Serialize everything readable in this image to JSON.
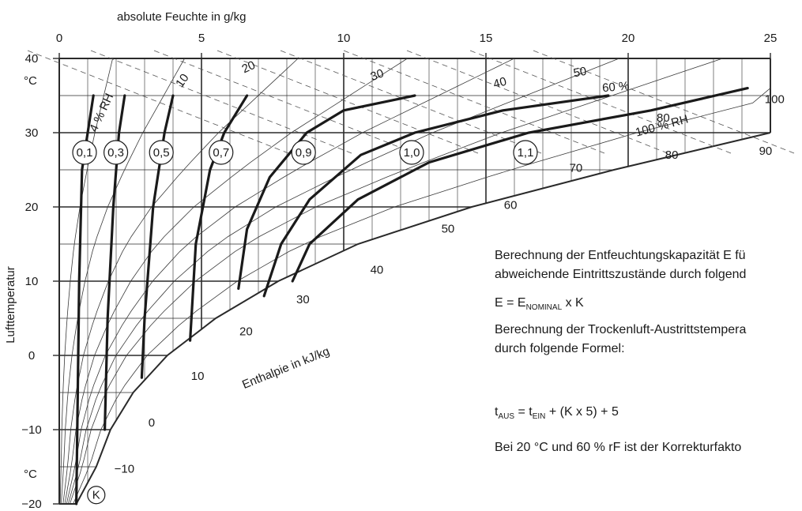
{
  "chart_data": {
    "type": "line",
    "title": "",
    "xlabel": "absolute Feuchte in g/kg",
    "ylabel": "Lufttemperatur",
    "x_ticks": [
      "0",
      "5",
      "10",
      "15",
      "20",
      "25"
    ],
    "xlim": [
      0,
      25
    ],
    "y_ticks": [
      "40",
      "30",
      "20",
      "10",
      "0",
      "−10",
      "−20"
    ],
    "ylim": [
      -20,
      40
    ],
    "y_unit_top": "°C",
    "y_unit_bottom": "°C",
    "rh_labels": [
      "4 % RH",
      "10",
      "20",
      "30",
      "40",
      "50",
      "60 %",
      "80",
      "100",
      "100 % RH",
      "80",
      "90"
    ],
    "enthalpy_axis_label": "Enthalpie in kJ/kg",
    "enthalpy_ticks": [
      "−10",
      "0",
      "10",
      "20",
      "30",
      "40",
      "50",
      "60",
      "70"
    ],
    "k_marker": "K",
    "series": [
      {
        "name": "0,1",
        "points": [
          [
            1.2,
            35
          ],
          [
            1.0,
            30
          ],
          [
            0.8,
            25
          ],
          [
            0.7,
            10
          ],
          [
            0.65,
            -5
          ],
          [
            0.6,
            -20
          ]
        ]
      },
      {
        "name": "0,3",
        "points": [
          [
            2.3,
            35
          ],
          [
            2.1,
            30
          ],
          [
            1.9,
            20
          ],
          [
            1.7,
            5
          ],
          [
            1.6,
            -10
          ]
        ]
      },
      {
        "name": "0,5",
        "points": [
          [
            4.0,
            35
          ],
          [
            3.7,
            30
          ],
          [
            3.3,
            20
          ],
          [
            3.0,
            5
          ],
          [
            2.9,
            -3
          ]
        ]
      },
      {
        "name": "0,7",
        "points": [
          [
            6.6,
            35
          ],
          [
            5.8,
            30
          ],
          [
            5.3,
            25
          ],
          [
            4.8,
            15
          ],
          [
            4.6,
            2
          ]
        ]
      },
      {
        "name": "0,9",
        "points": [
          [
            12.5,
            35
          ],
          [
            10.0,
            33
          ],
          [
            8.7,
            30
          ],
          [
            7.4,
            24
          ],
          [
            6.6,
            17
          ],
          [
            6.3,
            9
          ]
        ]
      },
      {
        "name": "1,0",
        "points": [
          [
            19.3,
            35
          ],
          [
            15.6,
            33
          ],
          [
            12.5,
            30
          ],
          [
            10.6,
            27
          ],
          [
            8.8,
            21
          ],
          [
            7.8,
            15
          ],
          [
            7.2,
            8
          ]
        ]
      },
      {
        "name": "1,1",
        "points": [
          [
            24.2,
            36
          ],
          [
            20.8,
            33
          ],
          [
            16.5,
            30
          ],
          [
            13.0,
            26
          ],
          [
            10.5,
            21
          ],
          [
            8.8,
            15
          ],
          [
            8.2,
            10
          ]
        ]
      }
    ]
  },
  "sidebar_text": {
    "line1": "Berechnung der Entfeuchtungskapazität E fü",
    "line2": "abweichende Eintrittszustände durch folgend",
    "formula1_main": "E = E",
    "formula1_sub": "NOMINAL",
    "formula1_tail": " x K",
    "line3": "Berechnung der Trockenluft-Austrittstempera",
    "line4": "durch folgende Formel:",
    "formula2_t1": "t",
    "formula2_sub1": "AUS",
    "formula2_mid": " = t",
    "formula2_sub2": "EIN",
    "formula2_tail": " + (K x 5) + 5",
    "line5": "Bei 20 °C und 60 % rF ist der Korrekturfakto"
  },
  "colors": {
    "ink": "#1a1a1a",
    "grid": "#2a2a2a",
    "thin": "#3a3a3a",
    "dash": "#555555"
  }
}
